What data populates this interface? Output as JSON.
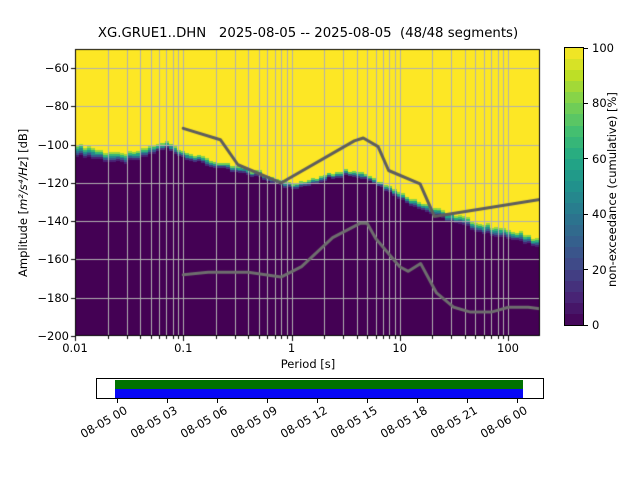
{
  "title": "XG.GRUE1..DHN   2025-08-05 -- 2025-08-05  (48/48 segments)",
  "axes": {
    "x_label": "Period [s]",
    "x_ticks": [
      {
        "label": "0.01",
        "value": 0.01
      },
      {
        "label": "0.1",
        "value": 0.1
      },
      {
        "label": "1",
        "value": 1
      },
      {
        "label": "10",
        "value": 10
      },
      {
        "label": "100",
        "value": 100
      }
    ],
    "y_label_prefix": "Amplitude [",
    "y_label_math": "m²/s⁴/Hz",
    "y_label_suffix": "] [dB]",
    "y_ticks": [
      {
        "label": "−60",
        "value": -60
      },
      {
        "label": "−80",
        "value": -80
      },
      {
        "label": "−100",
        "value": -100
      },
      {
        "label": "−120",
        "value": -120
      },
      {
        "label": "−140",
        "value": -140
      },
      {
        "label": "−160",
        "value": -160
      },
      {
        "label": "−180",
        "value": -180
      },
      {
        "label": "−200",
        "value": -200
      }
    ]
  },
  "colorbar": {
    "label": "non-exceedance (cumulative) [%]",
    "ticks": [
      {
        "label": "0",
        "value": 0
      },
      {
        "label": "20",
        "value": 20
      },
      {
        "label": "40",
        "value": 40
      },
      {
        "label": "60",
        "value": 60
      },
      {
        "label": "80",
        "value": 80
      },
      {
        "label": "100",
        "value": 100
      }
    ],
    "bands": 25
  },
  "timeline": {
    "labels": [
      "08-05 00",
      "08-05 03",
      "08-05 06",
      "08-05 09",
      "08-05 12",
      "08-05 15",
      "08-05 18",
      "08-05 21",
      "08-06 00"
    ],
    "coverage_color": "#007200",
    "extent_color": "#0707f5"
  },
  "chart_data": {
    "type": "heatmap",
    "title": "XG.GRUE1..DHN   2025-08-05 -- 2025-08-05  (48/48 segments)",
    "xlabel": "Period [s]",
    "ylabel": "Amplitude [m²/s⁴/Hz] [dB]",
    "zlabel": "non-exceedance (cumulative) [%]",
    "x_scale": "log",
    "xlim_s": [
      0.01,
      198
    ],
    "ylim_db": [
      -200,
      -50
    ],
    "zlim_pct": [
      0,
      100
    ],
    "grid": true,
    "noise_floor_boundary": {
      "log10_period": [
        -2.0,
        -1.84,
        -1.68,
        -1.55,
        -1.4,
        -1.26,
        -1.155,
        -1.05,
        -0.92,
        -0.74,
        -0.52,
        -0.3,
        -0.12,
        0.02,
        0.17,
        0.34,
        0.53,
        0.72,
        0.9,
        1.04,
        1.15,
        1.38,
        1.56,
        1.74,
        1.92,
        2.11,
        2.295
      ],
      "db": [
        -105.3,
        -107.0,
        -108.7,
        -109.8,
        -107.5,
        -104.2,
        -102.0,
        -105.2,
        -108.3,
        -111.3,
        -114.5,
        -117.2,
        -120.5,
        -123.7,
        -121.0,
        -117.6,
        -115.9,
        -118.5,
        -124.6,
        -129.8,
        -132.4,
        -138.5,
        -142.0,
        -145.5,
        -148.1,
        -150.7,
        -153.3
      ]
    },
    "transition_width_db": {
      "log10_period": [
        -2.0,
        -1.5,
        -1.0,
        0.0,
        0.7,
        1.3,
        1.9,
        2.295
      ],
      "db": [
        6.0,
        4.5,
        3.5,
        2.8,
        2.8,
        4.2,
        4.5,
        4.5
      ]
    },
    "nhnm_line": {
      "log10_period": [
        -1.0,
        -0.657,
        -0.495,
        -0.097,
        0.58,
        0.663,
        0.8,
        0.897,
        1.188,
        1.32,
        2.295
      ],
      "db": [
        -91.5,
        -97.4,
        -110.5,
        -120.0,
        -98.0,
        -96.5,
        -101.0,
        -113.5,
        -120.5,
        -137.5,
        -128.6
      ]
    },
    "nlnm_line": {
      "log10_period": [
        -1.0,
        -0.77,
        -0.4,
        -0.097,
        0.093,
        0.38,
        0.633,
        0.699,
        0.778,
        1.0,
        1.079,
        1.193,
        1.34,
        1.5,
        1.653,
        1.845,
        2.004,
        2.188,
        2.295
      ],
      "db": [
        -168.0,
        -166.7,
        -166.7,
        -169.2,
        -163.7,
        -148.6,
        -141.1,
        -141.1,
        -149.0,
        -163.8,
        -166.2,
        -162.1,
        -177.5,
        -185.0,
        -187.5,
        -187.5,
        -185.0,
        -185.0,
        -185.8
      ]
    },
    "colors": {
      "high_pct": "#fde725",
      "low_pct": "#440154",
      "grid": "#b0b0b0",
      "nhnm_line": "#5e5e5e",
      "nlnm_line": "#6e6e6e",
      "viridis_stops": [
        [
          0,
          "#440154"
        ],
        [
          0.1,
          "#482475"
        ],
        [
          0.2,
          "#414487"
        ],
        [
          0.3,
          "#35608d"
        ],
        [
          0.4,
          "#2a788e"
        ],
        [
          0.5,
          "#21918c"
        ],
        [
          0.6,
          "#22a884"
        ],
        [
          0.7,
          "#44bf70"
        ],
        [
          0.8,
          "#7ad151"
        ],
        [
          0.9,
          "#bddf26"
        ],
        [
          1,
          "#fde725"
        ]
      ]
    }
  }
}
